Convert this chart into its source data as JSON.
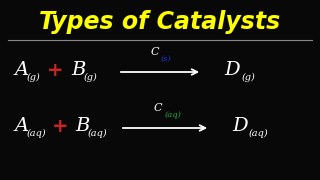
{
  "title": "Types of Catalysts",
  "title_color": "#FFFF00",
  "bg_color": "#080808",
  "line_color": "#888888",
  "white": "#FFFFFF",
  "red": "#CC2222",
  "blue": "#2233CC",
  "green": "#22AA44",
  "figsize": [
    3.2,
    1.8
  ],
  "dpi": 100,
  "row1": {
    "A_sub": "(g)",
    "B_sub": "(g)",
    "C_sub": "(s)",
    "D_sub": "(g)"
  },
  "row2": {
    "A_sub": "(aq)",
    "B_sub": "(aq)",
    "C_sub": "(aq)",
    "D_sub": "(aq)"
  }
}
